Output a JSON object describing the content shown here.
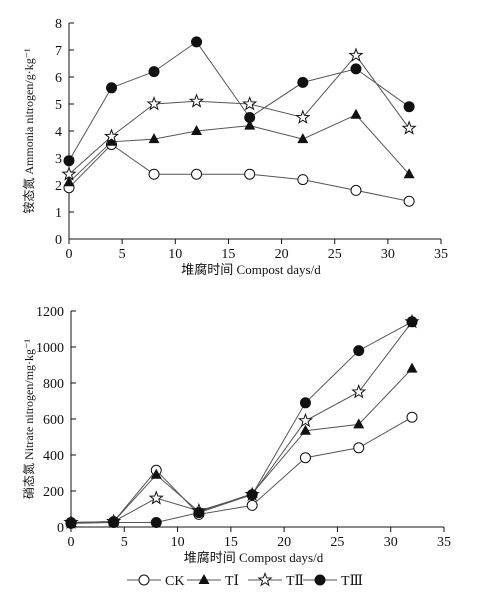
{
  "colors": {
    "ink": "#111111",
    "line": "#555555",
    "paper": "#ffffff",
    "hollow": "#ffffff"
  },
  "legend": {
    "placement": "bottom",
    "entries": [
      {
        "label": "CK",
        "marker": "circle-open"
      },
      {
        "label": "TⅠ",
        "marker": "triangle-filled"
      },
      {
        "label": "TⅡ",
        "marker": "star-open"
      },
      {
        "label": "TⅢ",
        "marker": "circle-filled"
      }
    ]
  },
  "chart_data": [
    {
      "type": "line",
      "xlabel": "堆腐时间 Compost days/d",
      "ylabel": "铵态氮 Ammonia nitrogen/g·kg⁻¹",
      "xlim": [
        0,
        35
      ],
      "ylim": [
        0,
        8
      ],
      "xticks": [
        "0",
        "5",
        "10",
        "15",
        "20",
        "25",
        "30",
        "35"
      ],
      "yticks": [
        "0",
        "1",
        "2",
        "3",
        "4",
        "5",
        "6",
        "7",
        "8"
      ],
      "grid": false,
      "x": [
        0,
        4,
        8,
        12,
        17,
        22,
        27,
        32
      ],
      "series": [
        {
          "name": "CK",
          "marker": "circle-open",
          "values": [
            1.9,
            3.5,
            2.4,
            2.4,
            2.4,
            2.2,
            1.8,
            1.4
          ]
        },
        {
          "name": "TⅠ",
          "marker": "triangle-filled",
          "values": [
            2.1,
            3.6,
            3.7,
            4.0,
            4.2,
            3.7,
            4.6,
            2.4
          ]
        },
        {
          "name": "TⅡ",
          "marker": "star-open",
          "values": [
            2.4,
            3.8,
            5.0,
            5.1,
            5.0,
            4.5,
            6.8,
            4.1
          ]
        },
        {
          "name": "TⅢ",
          "marker": "circle-filled",
          "values": [
            2.9,
            5.6,
            6.2,
            7.3,
            4.5,
            5.8,
            6.3,
            4.9
          ]
        }
      ]
    },
    {
      "type": "line",
      "xlabel": "堆腐时间 Compost days/d",
      "ylabel": "硝态氮 Nitrate nitrogen/mg·kg⁻¹",
      "xlim": [
        0,
        35
      ],
      "ylim": [
        0,
        1200
      ],
      "xticks": [
        "0",
        "5",
        "10",
        "15",
        "20",
        "25",
        "30",
        "35"
      ],
      "yticks": [
        "0",
        "200",
        "400",
        "600",
        "800",
        "1000",
        "1200"
      ],
      "grid": false,
      "x": [
        0,
        4,
        8,
        12,
        17,
        22,
        27,
        32
      ],
      "series": [
        {
          "name": "CK",
          "marker": "circle-open",
          "values": [
            25,
            30,
            315,
            70,
            120,
            385,
            440,
            610
          ]
        },
        {
          "name": "TⅠ",
          "marker": "triangle-filled",
          "values": [
            25,
            30,
            290,
            85,
            185,
            535,
            570,
            880
          ]
        },
        {
          "name": "TⅡ",
          "marker": "star-open",
          "values": [
            25,
            30,
            160,
            90,
            180,
            590,
            750,
            1140
          ]
        },
        {
          "name": "TⅢ",
          "marker": "circle-filled",
          "values": [
            20,
            25,
            25,
            80,
            180,
            690,
            980,
            1140
          ]
        }
      ]
    }
  ]
}
